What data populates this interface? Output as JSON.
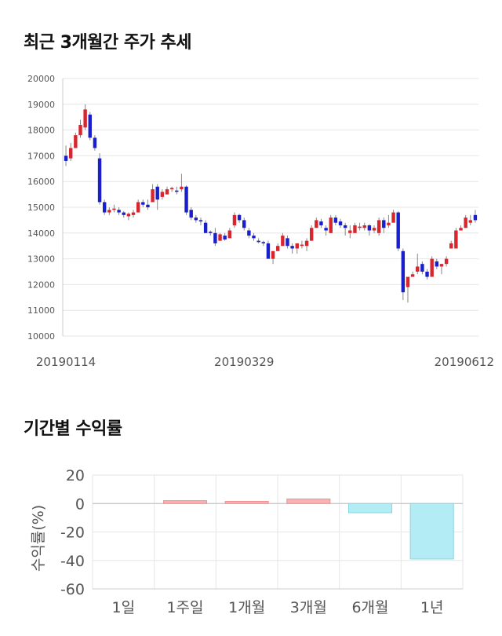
{
  "titles": {
    "price_trend": "최근 3개월간 주가 추세",
    "period_returns": "기간별 수익률"
  },
  "colors": {
    "up": "#d7262e",
    "down": "#1a1fcc",
    "wick": "#888888",
    "grid": "#e6e6e6",
    "return_positive_fill": "#f9b3b3",
    "return_positive_stroke": "#f08f8f",
    "return_negative_fill": "#b3ecf5",
    "return_negative_stroke": "#86d6e3"
  },
  "chart_data": [
    {
      "type": "candlestick",
      "ylim": [
        10000,
        20000
      ],
      "y_ticks": [
        "10000",
        "11000",
        "12000",
        "13000",
        "14000",
        "15000",
        "16000",
        "17000",
        "18000",
        "19000",
        "20000"
      ],
      "x_tick_labels": [
        "20190114",
        "20190329",
        "20190612"
      ],
      "x_tick_positions": [
        0,
        37,
        74
      ],
      "grid": "horizontal",
      "candles": [
        [
          17000,
          17400,
          16600,
          16800
        ],
        [
          16900,
          17500,
          16800,
          17300
        ],
        [
          17300,
          17900,
          17300,
          17800
        ],
        [
          17800,
          18400,
          17700,
          18200
        ],
        [
          18100,
          19000,
          18000,
          18800
        ],
        [
          18600,
          18700,
          17600,
          17700
        ],
        [
          17700,
          17800,
          17200,
          17300
        ],
        [
          16900,
          17100,
          15100,
          15200
        ],
        [
          15200,
          15300,
          14700,
          14800
        ],
        [
          14800,
          15000,
          14700,
          14900
        ],
        [
          14900,
          15100,
          14800,
          14950
        ],
        [
          14900,
          15000,
          14700,
          14800
        ],
        [
          14800,
          14850,
          14600,
          14700
        ],
        [
          14650,
          14800,
          14500,
          14750
        ],
        [
          14700,
          14900,
          14600,
          14800
        ],
        [
          14800,
          15300,
          14800,
          15200
        ],
        [
          15200,
          15300,
          15000,
          15100
        ],
        [
          15100,
          15300,
          14900,
          15000
        ],
        [
          15200,
          15900,
          15200,
          15700
        ],
        [
          15800,
          15900,
          14900,
          15300
        ],
        [
          15400,
          15700,
          15300,
          15600
        ],
        [
          15500,
          15800,
          15500,
          15700
        ],
        [
          15700,
          15800,
          15600,
          15750
        ],
        [
          15650,
          15800,
          15500,
          15600
        ],
        [
          15700,
          16300,
          15600,
          15800
        ],
        [
          15800,
          15850,
          14700,
          14800
        ],
        [
          14900,
          15000,
          14500,
          14600
        ],
        [
          14600,
          14700,
          14400,
          14500
        ],
        [
          14500,
          14600,
          14300,
          14450
        ],
        [
          14400,
          14500,
          14000,
          14000
        ],
        [
          14050,
          14100,
          13900,
          14000
        ],
        [
          14000,
          14200,
          13500,
          13600
        ],
        [
          13700,
          14000,
          13700,
          13950
        ],
        [
          13900,
          14000,
          13700,
          13750
        ],
        [
          13800,
          14200,
          13800,
          14100
        ],
        [
          14300,
          14800,
          14200,
          14700
        ],
        [
          14700,
          14750,
          14400,
          14500
        ],
        [
          14500,
          14600,
          14100,
          14200
        ],
        [
          14100,
          14200,
          13800,
          13900
        ],
        [
          13900,
          14000,
          13700,
          13800
        ],
        [
          13700,
          13800,
          13600,
          13650
        ],
        [
          13650,
          13700,
          13500,
          13600
        ],
        [
          13600,
          13700,
          13100,
          13000
        ],
        [
          13000,
          13200,
          12800,
          13300
        ],
        [
          13300,
          13600,
          13300,
          13500
        ],
        [
          13500,
          14000,
          13500,
          13900
        ],
        [
          13800,
          13900,
          13400,
          13500
        ],
        [
          13500,
          13600,
          13200,
          13400
        ],
        [
          13400,
          13500,
          13200,
          13600
        ],
        [
          13500,
          13700,
          13400,
          13550
        ],
        [
          13500,
          13800,
          13300,
          13700
        ],
        [
          13700,
          14300,
          13700,
          14200
        ],
        [
          14200,
          14600,
          14200,
          14500
        ],
        [
          14450,
          14550,
          14200,
          14300
        ],
        [
          14200,
          14300,
          13900,
          14100
        ],
        [
          14000,
          14700,
          14000,
          14600
        ],
        [
          14600,
          14700,
          14300,
          14400
        ],
        [
          14450,
          14550,
          14200,
          14300
        ],
        [
          14300,
          14400,
          13900,
          14200
        ],
        [
          14000,
          14300,
          13800,
          14100
        ],
        [
          14000,
          14400,
          14000,
          14300
        ],
        [
          14200,
          14400,
          14100,
          14250
        ],
        [
          14200,
          14400,
          14100,
          14300
        ],
        [
          14300,
          14350,
          13900,
          14100
        ],
        [
          14100,
          14300,
          14000,
          14200
        ],
        [
          14000,
          14600,
          13900,
          14500
        ],
        [
          14500,
          14600,
          14000,
          14200
        ],
        [
          14300,
          14700,
          14200,
          14400
        ],
        [
          14400,
          14900,
          14400,
          14800
        ],
        [
          14800,
          14850,
          13300,
          13400
        ],
        [
          13300,
          13400,
          11400,
          11700
        ],
        [
          11900,
          12200,
          11300,
          12300
        ],
        [
          12300,
          12500,
          12300,
          12400
        ],
        [
          12500,
          13200,
          12400,
          12700
        ],
        [
          12800,
          12900,
          12400,
          12500
        ],
        [
          12500,
          12600,
          12200,
          12300
        ],
        [
          12300,
          13100,
          12300,
          13000
        ],
        [
          12900,
          13000,
          12600,
          12700
        ],
        [
          12700,
          12800,
          12400,
          12800
        ],
        [
          12800,
          13100,
          12700,
          13000
        ],
        [
          13400,
          13700,
          13400,
          13600
        ],
        [
          13400,
          14200,
          13400,
          14100
        ],
        [
          14100,
          14300,
          14100,
          14200
        ],
        [
          14200,
          14700,
          14200,
          14600
        ],
        [
          14400,
          14700,
          14300,
          14500
        ],
        [
          14700,
          14900,
          14400,
          14500
        ]
      ]
    },
    {
      "type": "bar",
      "categories": [
        "1일",
        "1주일",
        "1개월",
        "3개월",
        "6개월",
        "1년"
      ],
      "values": [
        0,
        2,
        1.5,
        3.2,
        -6.5,
        -39
      ],
      "ylabel": "수익률(%)",
      "ylim": [
        -60,
        20
      ],
      "y_ticks": [
        "20",
        "0",
        "-20",
        "-40",
        "-60"
      ],
      "grid": "both"
    }
  ]
}
